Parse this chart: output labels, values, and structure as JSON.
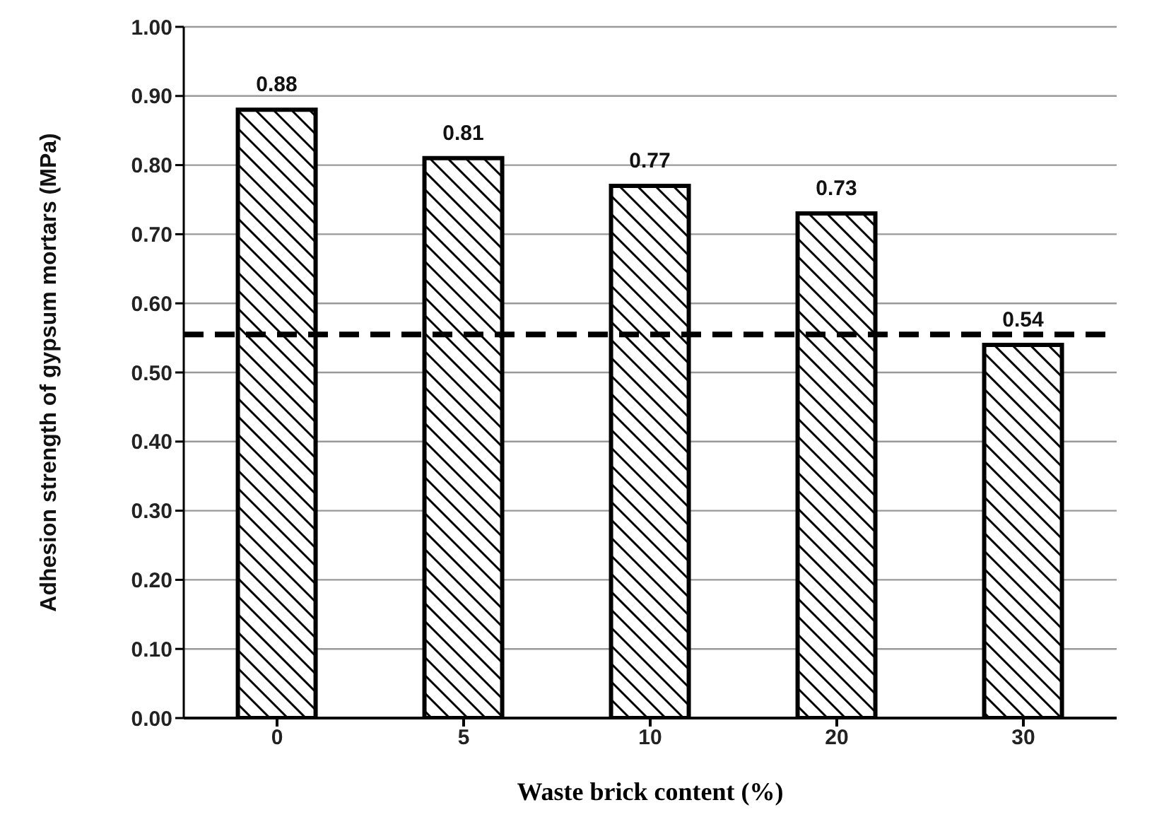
{
  "chart_data": {
    "type": "bar",
    "xlabel": "Waste brick content (%)",
    "ylabel": "Adhesion  strength of gypsum mortars (MPa)",
    "categories": [
      "0",
      "5",
      "10",
      "20",
      "30"
    ],
    "values": [
      0.88,
      0.81,
      0.77,
      0.73,
      0.54
    ],
    "color": "#000000",
    "data_labels": true,
    "ylim": [
      0,
      1
    ],
    "yticks": [
      {
        "value": 0,
        "label": "0.00"
      },
      {
        "value": 0.1,
        "label": "0.10"
      },
      {
        "value": 0.2,
        "label": "0.20"
      },
      {
        "value": 0.3,
        "label": "0.30"
      },
      {
        "value": 0.4,
        "label": "0.40"
      },
      {
        "value": 0.5,
        "label": "0.50"
      },
      {
        "value": 0.6,
        "label": "0.60"
      },
      {
        "value": 0.7,
        "label": "0.70"
      },
      {
        "value": 0.8,
        "label": "0.80"
      },
      {
        "value": 0.9,
        "label": "0.90"
      },
      {
        "value": 1,
        "label": "1.00"
      }
    ],
    "grid": "y",
    "ref_lines": [
      {
        "axis": "y",
        "value": 0.555,
        "color": "#000000",
        "line_style": "dashed"
      }
    ]
  }
}
